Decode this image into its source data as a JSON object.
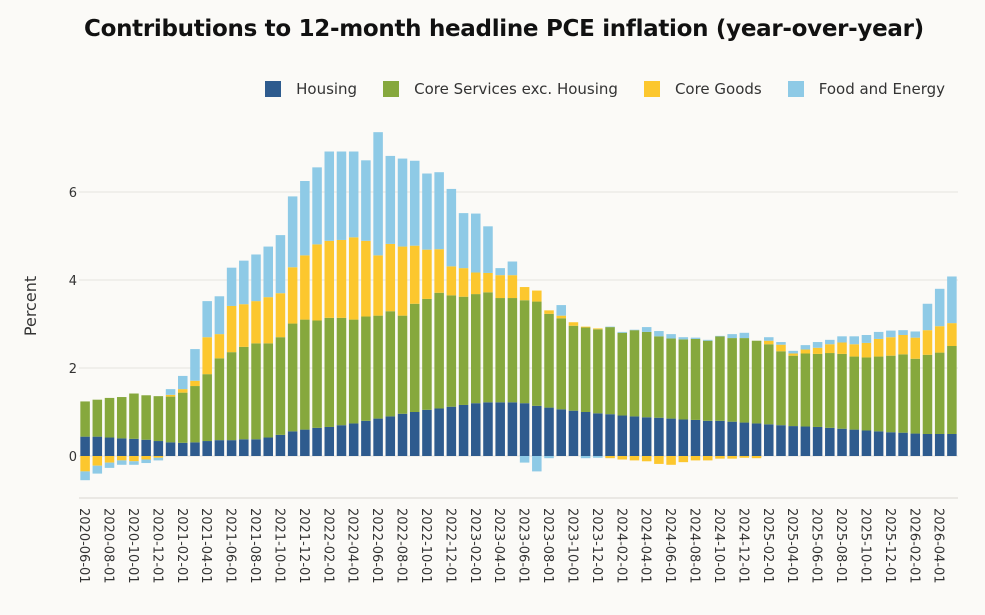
{
  "chart_data": {
    "type": "bar",
    "stacked": true,
    "title": "Contributions to 12-month headline PCE inflation (year-over-year)",
    "ylabel": "Percent",
    "xlabel": "",
    "ylim": [
      -1,
      8
    ],
    "yticks": [
      0,
      2,
      4,
      6
    ],
    "grid": true,
    "legend_position": "top-right",
    "colors": {
      "housing": "#2e5b8e",
      "core_services": "#86a83d",
      "core_goods": "#fcc72e",
      "food_energy": "#8ecae6"
    },
    "x": [
      "2020-06-01",
      "2020-07-01",
      "2020-08-01",
      "2020-09-01",
      "2020-10-01",
      "2020-11-01",
      "2020-12-01",
      "2021-01-01",
      "2021-02-01",
      "2021-03-01",
      "2021-04-01",
      "2021-05-01",
      "2021-06-01",
      "2021-07-01",
      "2021-08-01",
      "2021-09-01",
      "2021-10-01",
      "2021-11-01",
      "2021-12-01",
      "2022-01-01",
      "2022-02-01",
      "2022-03-01",
      "2022-04-01",
      "2022-05-01",
      "2022-06-01",
      "2022-07-01",
      "2022-08-01",
      "2022-09-01",
      "2022-10-01",
      "2022-11-01",
      "2022-12-01",
      "2023-01-01",
      "2023-02-01",
      "2023-03-01",
      "2023-04-01",
      "2023-05-01",
      "2023-06-01",
      "2023-07-01",
      "2023-08-01",
      "2023-09-01",
      "2023-10-01",
      "2023-11-01",
      "2023-12-01",
      "2024-01-01",
      "2024-02-01",
      "2024-03-01",
      "2024-04-01",
      "2024-05-01",
      "2024-06-01",
      "2024-07-01",
      "2024-08-01",
      "2024-09-01",
      "2024-10-01",
      "2024-11-01",
      "2024-12-01",
      "2025-01-01",
      "2025-02-01",
      "2025-03-01",
      "2025-04-01",
      "2025-05-01",
      "2025-06-01",
      "2025-07-01",
      "2025-08-01",
      "2025-09-01",
      "2025-10-01",
      "2025-11-01",
      "2025-12-01",
      "2026-01-01",
      "2026-02-01",
      "2026-03-01",
      "2026-04-01",
      "2026-05-01"
    ],
    "xtick_labels": [
      "2020-06-01",
      "2020-08-01",
      "2020-10-01",
      "2020-12-01",
      "2021-02-01",
      "2021-04-01",
      "2021-06-01",
      "2021-08-01",
      "2021-10-01",
      "2021-12-01",
      "2022-02-01",
      "2022-04-01",
      "2022-06-01",
      "2022-08-01",
      "2022-10-01",
      "2022-12-01",
      "2023-02-01",
      "2023-04-01",
      "2023-06-01",
      "2023-08-01",
      "2023-10-01",
      "2023-12-01",
      "2024-02-01",
      "2024-04-01",
      "2024-06-01",
      "2024-08-01",
      "2024-10-01",
      "2024-12-01",
      "2025-02-01",
      "2025-04-01",
      "2025-06-01",
      "2025-08-01",
      "2025-10-01",
      "2025-12-01",
      "2026-02-01",
      "2026-04-01"
    ],
    "series": [
      {
        "name": "Housing",
        "key": "housing",
        "values": [
          0.44,
          0.44,
          0.42,
          0.4,
          0.39,
          0.37,
          0.34,
          0.31,
          0.3,
          0.31,
          0.34,
          0.36,
          0.36,
          0.38,
          0.38,
          0.42,
          0.48,
          0.56,
          0.6,
          0.64,
          0.66,
          0.7,
          0.74,
          0.8,
          0.85,
          0.9,
          0.96,
          1.0,
          1.05,
          1.08,
          1.12,
          1.16,
          1.2,
          1.22,
          1.22,
          1.22,
          1.2,
          1.14,
          1.1,
          1.06,
          1.03,
          1.0,
          0.97,
          0.95,
          0.92,
          0.9,
          0.88,
          0.87,
          0.85,
          0.83,
          0.82,
          0.8,
          0.8,
          0.78,
          0.76,
          0.74,
          0.72,
          0.7,
          0.68,
          0.67,
          0.66,
          0.64,
          0.62,
          0.6,
          0.58,
          0.56,
          0.54,
          0.53,
          0.51,
          0.5,
          0.5,
          0.5
        ]
      },
      {
        "name": "Core Services exc. Housing",
        "key": "core_services",
        "values": [
          0.8,
          0.84,
          0.9,
          0.94,
          1.03,
          1.01,
          1.02,
          1.04,
          1.14,
          1.28,
          1.52,
          1.86,
          2.0,
          2.1,
          2.18,
          2.14,
          2.22,
          2.45,
          2.5,
          2.44,
          2.48,
          2.44,
          2.36,
          2.37,
          2.34,
          2.39,
          2.23,
          2.46,
          2.52,
          2.63,
          2.53,
          2.46,
          2.48,
          2.5,
          2.37,
          2.37,
          2.34,
          2.37,
          2.13,
          2.07,
          1.93,
          1.92,
          1.91,
          1.98,
          1.88,
          1.96,
          1.94,
          1.85,
          1.82,
          1.82,
          1.84,
          1.82,
          1.92,
          1.9,
          1.92,
          1.88,
          1.82,
          1.68,
          1.6,
          1.66,
          1.66,
          1.7,
          1.7,
          1.66,
          1.66,
          1.7,
          1.74,
          1.78,
          1.7,
          1.8,
          1.85,
          2.0
        ]
      },
      {
        "name": "Core Goods",
        "key": "core_goods",
        "values": [
          -0.35,
          -0.22,
          -0.15,
          -0.1,
          -0.12,
          -0.08,
          -0.04,
          0.04,
          0.08,
          0.12,
          0.84,
          0.55,
          1.05,
          0.97,
          0.96,
          1.05,
          1.0,
          1.28,
          1.46,
          1.73,
          1.75,
          1.77,
          1.87,
          1.72,
          1.37,
          1.53,
          1.57,
          1.32,
          1.12,
          0.99,
          0.66,
          0.65,
          0.49,
          0.44,
          0.52,
          0.52,
          0.3,
          0.25,
          0.08,
          0.06,
          0.08,
          0.02,
          0.02,
          -0.05,
          -0.08,
          -0.1,
          -0.12,
          -0.18,
          -0.2,
          -0.14,
          -0.1,
          -0.1,
          -0.06,
          -0.06,
          -0.04,
          -0.05,
          0.08,
          0.15,
          0.05,
          0.09,
          0.14,
          0.2,
          0.26,
          0.28,
          0.33,
          0.4,
          0.42,
          0.44,
          0.48,
          0.56,
          0.6,
          0.52
        ]
      },
      {
        "name": "Food and Energy",
        "key": "food_energy",
        "values": [
          -0.2,
          -0.18,
          -0.12,
          -0.1,
          -0.08,
          -0.08,
          -0.06,
          0.13,
          0.3,
          0.72,
          0.82,
          0.86,
          0.87,
          0.99,
          1.06,
          1.15,
          1.32,
          1.61,
          1.69,
          1.75,
          2.03,
          2.01,
          1.95,
          1.83,
          2.8,
          2.0,
          2.0,
          1.93,
          1.73,
          1.75,
          1.76,
          1.25,
          1.34,
          1.06,
          0.16,
          0.31,
          -0.15,
          -0.35,
          -0.05,
          0.24,
          0.0,
          -0.05,
          -0.04,
          0.01,
          0.02,
          0.01,
          0.11,
          0.12,
          0.1,
          0.05,
          0.03,
          0.02,
          0.01,
          0.09,
          0.12,
          0.0,
          0.08,
          0.06,
          0.06,
          0.1,
          0.13,
          0.1,
          0.14,
          0.18,
          0.18,
          0.16,
          0.15,
          0.11,
          0.14,
          0.6,
          0.85,
          1.06
        ]
      }
    ]
  }
}
